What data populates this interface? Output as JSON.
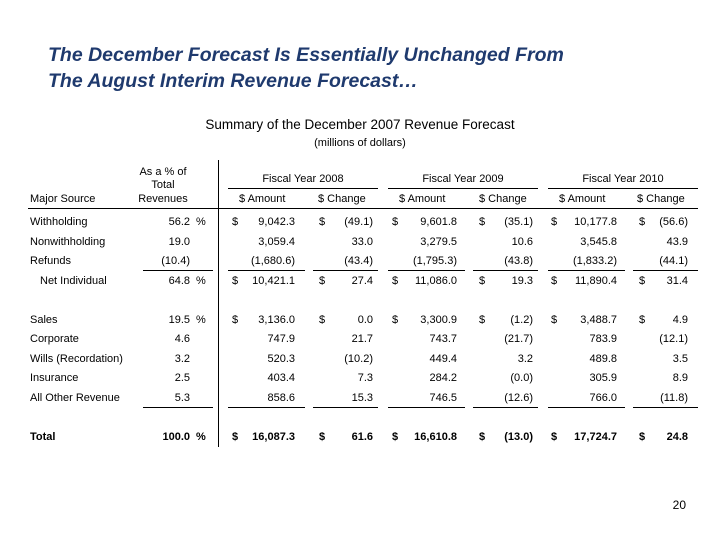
{
  "title": {
    "line1": "The December Forecast Is Essentially Unchanged From",
    "line2": "The August Interim Revenue Forecast…"
  },
  "subtitle": "Summary of the December 2007 Revenue Forecast",
  "units": "(millions of dollars)",
  "header": {
    "pct_line1": "As a % of",
    "pct_line2": "Total",
    "pct_line3": "Revenues",
    "major_source": "Major Source",
    "fy2008": "Fiscal Year 2008",
    "fy2009": "Fiscal Year 2009",
    "fy2010": "Fiscal Year 2010",
    "amount": "$ Amount",
    "change": "$ Change"
  },
  "rows": [
    {
      "source": "Withholding",
      "pct": "56.2",
      "pctsign": "%",
      "d1": "$",
      "a08": "9,042.3",
      "d2": "$",
      "c08": "(49.1)",
      "d3": "$",
      "a09": "9,601.8",
      "d4": "$",
      "c09": "(35.1)",
      "d5": "$",
      "a10": "10,177.8",
      "d6": "$",
      "c10": "(56.6)"
    },
    {
      "source": "Nonwithholding",
      "pct": "19.0",
      "pctsign": "",
      "d1": "",
      "a08": "3,059.4",
      "d2": "",
      "c08": "33.0",
      "d3": "",
      "a09": "3,279.5",
      "d4": "",
      "c09": "10.6",
      "d5": "",
      "a10": "3,545.8",
      "d6": "",
      "c10": "43.9"
    },
    {
      "source": "Refunds",
      "pct": "(10.4)",
      "pctsign": "",
      "d1": "",
      "a08": "(1,680.6)",
      "d2": "",
      "c08": "(43.4)",
      "d3": "",
      "a09": "(1,795.3)",
      "d4": "",
      "c09": "(43.8)",
      "d5": "",
      "a10": "(1,833.2)",
      "d6": "",
      "c10": "(44.1)"
    },
    {
      "source": "Net Individual",
      "pct": "64.8",
      "pctsign": "%",
      "d1": "$",
      "a08": "10,421.1",
      "d2": "$",
      "c08": "27.4",
      "d3": "$",
      "a09": "11,086.0",
      "d4": "$",
      "c09": "19.3",
      "d5": "$",
      "a10": "11,890.4",
      "d6": "$",
      "c10": "31.4"
    },
    {
      "source": "Sales",
      "pct": "19.5",
      "pctsign": "%",
      "d1": "$",
      "a08": "3,136.0",
      "d2": "$",
      "c08": "0.0",
      "d3": "$",
      "a09": "3,300.9",
      "d4": "$",
      "c09": "(1.2)",
      "d5": "$",
      "a10": "3,488.7",
      "d6": "$",
      "c10": "4.9"
    },
    {
      "source": "Corporate",
      "pct": "4.6",
      "pctsign": "",
      "d1": "",
      "a08": "747.9",
      "d2": "",
      "c08": "21.7",
      "d3": "",
      "a09": "743.7",
      "d4": "",
      "c09": "(21.7)",
      "d5": "",
      "a10": "783.9",
      "d6": "",
      "c10": "(12.1)"
    },
    {
      "source": "Wills (Recordation)",
      "pct": "3.2",
      "pctsign": "",
      "d1": "",
      "a08": "520.3",
      "d2": "",
      "c08": "(10.2)",
      "d3": "",
      "a09": "449.4",
      "d4": "",
      "c09": "3.2",
      "d5": "",
      "a10": "489.8",
      "d6": "",
      "c10": "3.5"
    },
    {
      "source": "Insurance",
      "pct": "2.5",
      "pctsign": "",
      "d1": "",
      "a08": "403.4",
      "d2": "",
      "c08": "7.3",
      "d3": "",
      "a09": "284.2",
      "d4": "",
      "c09": "(0.0)",
      "d5": "",
      "a10": "305.9",
      "d6": "",
      "c10": "8.9"
    },
    {
      "source": "All Other Revenue",
      "pct": "5.3",
      "pctsign": "",
      "d1": "",
      "a08": "858.6",
      "d2": "",
      "c08": "15.3",
      "d3": "",
      "a09": "746.5",
      "d4": "",
      "c09": "(12.6)",
      "d5": "",
      "a10": "766.0",
      "d6": "",
      "c10": "(11.8)"
    },
    {
      "source": "Total",
      "pct": "100.0",
      "pctsign": "%",
      "d1": "$",
      "a08": "16,087.3",
      "d2": "$",
      "c08": "61.6",
      "d3": "$",
      "a09": "16,610.8",
      "d4": "$",
      "c09": "(13.0)",
      "d5": "$",
      "a10": "17,724.7",
      "d6": "$",
      "c10": "24.8"
    }
  ],
  "page_number": "20"
}
